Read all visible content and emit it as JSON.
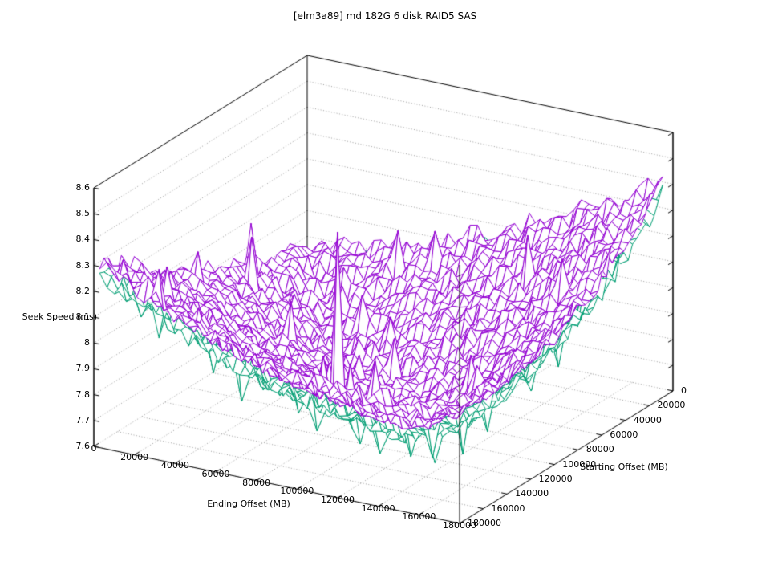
{
  "title": "[elm3a89] md 182G 6 disk RAID5 SAS",
  "chart_data": {
    "type": "surface3d",
    "title": "[elm3a89] md 182G 6 disk RAID5 SAS",
    "xlabel": "Ending Offset (MB)",
    "ylabel": "Starting Offset (MB)",
    "zlabel": "Seek Speed (ms)",
    "xlim": [
      0,
      180000
    ],
    "ylim": [
      0,
      180000
    ],
    "zlim": [
      7.6,
      8.6
    ],
    "x_ticks": [
      0,
      20000,
      40000,
      60000,
      80000,
      100000,
      120000,
      140000,
      160000,
      180000
    ],
    "y_ticks": [
      0,
      20000,
      40000,
      60000,
      80000,
      100000,
      120000,
      140000,
      160000,
      180000
    ],
    "z_ticks": [
      7.6,
      7.7,
      7.8,
      7.9,
      8.0,
      8.1,
      8.2,
      8.3,
      8.4,
      8.5,
      8.6
    ],
    "z_tick_labels": [
      "7.6",
      "7.7",
      "7.8",
      "7.9",
      "8",
      "8.1",
      "8.2",
      "8.3",
      "8.4",
      "8.5",
      "8.6"
    ],
    "grid": true,
    "legend": "none",
    "data_xmax": 175000,
    "data_ymax": 175000,
    "mesh": {
      "points_per_side": 49
    },
    "colors": {
      "background": "#ffffff",
      "border": "#000000",
      "grid": "#9a9a9a"
    },
    "grid_step": 20000,
    "series": [
      {
        "id": "surface-upper",
        "color": "#9400d3",
        "z_grid": [
          [
            7.88,
            7.9,
            7.93,
            7.98,
            8.04,
            8.1,
            8.17,
            8.25,
            8.33,
            8.42
          ],
          [
            7.89,
            7.82,
            7.84,
            7.88,
            7.94,
            8.0,
            8.07,
            8.15,
            8.23,
            8.33
          ],
          [
            7.92,
            7.83,
            7.76,
            7.8,
            7.85,
            7.91,
            7.98,
            8.06,
            8.14,
            8.24
          ],
          [
            7.95,
            7.87,
            7.79,
            7.73,
            7.77,
            7.83,
            7.9,
            7.97,
            8.06,
            8.17
          ],
          [
            8.0,
            7.91,
            7.83,
            7.76,
            7.71,
            7.75,
            7.82,
            7.9,
            8.0,
            8.11
          ],
          [
            8.05,
            7.96,
            7.88,
            7.81,
            7.75,
            7.7,
            7.76,
            7.84,
            7.95,
            8.08
          ],
          [
            8.11,
            8.02,
            7.94,
            7.87,
            7.8,
            7.75,
            7.73,
            7.81,
            7.92,
            8.06
          ],
          [
            8.18,
            8.09,
            8.01,
            7.93,
            7.87,
            7.83,
            7.8,
            7.8,
            7.91,
            8.05
          ],
          [
            8.25,
            8.16,
            8.08,
            8.01,
            7.96,
            7.92,
            7.91,
            7.91,
            7.93,
            8.07
          ],
          [
            8.32,
            8.24,
            8.17,
            8.11,
            8.06,
            8.04,
            8.03,
            8.04,
            8.06,
            8.12
          ]
        ],
        "z_offset": 0,
        "noise": 0.038,
        "spike_rate": 0.02,
        "spike_size": 0.16,
        "seed": 3,
        "spikes": [
          {
            "x": 103000,
            "y": 150000,
            "dz": 0.62
          }
        ]
      },
      {
        "id": "surface-lower",
        "color": "#009e73",
        "z_grid_same_as_first": true,
        "z_offset": -0.05,
        "noise": 0.042,
        "spike_rate": 0.05,
        "spike_size": -0.11,
        "seed": 8,
        "spikes": [
          {
            "x": 116000,
            "y": 100000,
            "dz": -0.09
          },
          {
            "x": 88000,
            "y": 118000,
            "dz": -0.07
          }
        ]
      }
    ]
  }
}
